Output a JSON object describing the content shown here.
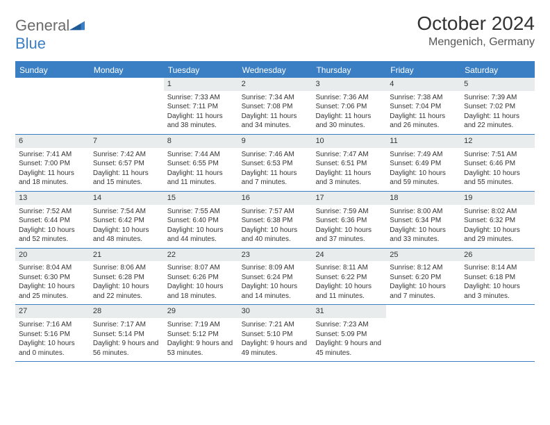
{
  "logo": {
    "part1": "General",
    "part2": "Blue"
  },
  "header": {
    "title": "October 2024",
    "location": "Mengenich, Germany"
  },
  "dayNames": [
    "Sunday",
    "Monday",
    "Tuesday",
    "Wednesday",
    "Thursday",
    "Friday",
    "Saturday"
  ],
  "colors": {
    "accent": "#3a7fc4",
    "dayNumBg": "#e8eced",
    "text": "#333333",
    "logoGray": "#6b6b6b",
    "background": "#ffffff"
  },
  "weeks": [
    [
      {
        "n": "",
        "sr": "",
        "ss": "",
        "dl": ""
      },
      {
        "n": "",
        "sr": "",
        "ss": "",
        "dl": ""
      },
      {
        "n": "1",
        "sr": "Sunrise: 7:33 AM",
        "ss": "Sunset: 7:11 PM",
        "dl": "Daylight: 11 hours and 38 minutes."
      },
      {
        "n": "2",
        "sr": "Sunrise: 7:34 AM",
        "ss": "Sunset: 7:08 PM",
        "dl": "Daylight: 11 hours and 34 minutes."
      },
      {
        "n": "3",
        "sr": "Sunrise: 7:36 AM",
        "ss": "Sunset: 7:06 PM",
        "dl": "Daylight: 11 hours and 30 minutes."
      },
      {
        "n": "4",
        "sr": "Sunrise: 7:38 AM",
        "ss": "Sunset: 7:04 PM",
        "dl": "Daylight: 11 hours and 26 minutes."
      },
      {
        "n": "5",
        "sr": "Sunrise: 7:39 AM",
        "ss": "Sunset: 7:02 PM",
        "dl": "Daylight: 11 hours and 22 minutes."
      }
    ],
    [
      {
        "n": "6",
        "sr": "Sunrise: 7:41 AM",
        "ss": "Sunset: 7:00 PM",
        "dl": "Daylight: 11 hours and 18 minutes."
      },
      {
        "n": "7",
        "sr": "Sunrise: 7:42 AM",
        "ss": "Sunset: 6:57 PM",
        "dl": "Daylight: 11 hours and 15 minutes."
      },
      {
        "n": "8",
        "sr": "Sunrise: 7:44 AM",
        "ss": "Sunset: 6:55 PM",
        "dl": "Daylight: 11 hours and 11 minutes."
      },
      {
        "n": "9",
        "sr": "Sunrise: 7:46 AM",
        "ss": "Sunset: 6:53 PM",
        "dl": "Daylight: 11 hours and 7 minutes."
      },
      {
        "n": "10",
        "sr": "Sunrise: 7:47 AM",
        "ss": "Sunset: 6:51 PM",
        "dl": "Daylight: 11 hours and 3 minutes."
      },
      {
        "n": "11",
        "sr": "Sunrise: 7:49 AM",
        "ss": "Sunset: 6:49 PM",
        "dl": "Daylight: 10 hours and 59 minutes."
      },
      {
        "n": "12",
        "sr": "Sunrise: 7:51 AM",
        "ss": "Sunset: 6:46 PM",
        "dl": "Daylight: 10 hours and 55 minutes."
      }
    ],
    [
      {
        "n": "13",
        "sr": "Sunrise: 7:52 AM",
        "ss": "Sunset: 6:44 PM",
        "dl": "Daylight: 10 hours and 52 minutes."
      },
      {
        "n": "14",
        "sr": "Sunrise: 7:54 AM",
        "ss": "Sunset: 6:42 PM",
        "dl": "Daylight: 10 hours and 48 minutes."
      },
      {
        "n": "15",
        "sr": "Sunrise: 7:55 AM",
        "ss": "Sunset: 6:40 PM",
        "dl": "Daylight: 10 hours and 44 minutes."
      },
      {
        "n": "16",
        "sr": "Sunrise: 7:57 AM",
        "ss": "Sunset: 6:38 PM",
        "dl": "Daylight: 10 hours and 40 minutes."
      },
      {
        "n": "17",
        "sr": "Sunrise: 7:59 AM",
        "ss": "Sunset: 6:36 PM",
        "dl": "Daylight: 10 hours and 37 minutes."
      },
      {
        "n": "18",
        "sr": "Sunrise: 8:00 AM",
        "ss": "Sunset: 6:34 PM",
        "dl": "Daylight: 10 hours and 33 minutes."
      },
      {
        "n": "19",
        "sr": "Sunrise: 8:02 AM",
        "ss": "Sunset: 6:32 PM",
        "dl": "Daylight: 10 hours and 29 minutes."
      }
    ],
    [
      {
        "n": "20",
        "sr": "Sunrise: 8:04 AM",
        "ss": "Sunset: 6:30 PM",
        "dl": "Daylight: 10 hours and 25 minutes."
      },
      {
        "n": "21",
        "sr": "Sunrise: 8:06 AM",
        "ss": "Sunset: 6:28 PM",
        "dl": "Daylight: 10 hours and 22 minutes."
      },
      {
        "n": "22",
        "sr": "Sunrise: 8:07 AM",
        "ss": "Sunset: 6:26 PM",
        "dl": "Daylight: 10 hours and 18 minutes."
      },
      {
        "n": "23",
        "sr": "Sunrise: 8:09 AM",
        "ss": "Sunset: 6:24 PM",
        "dl": "Daylight: 10 hours and 14 minutes."
      },
      {
        "n": "24",
        "sr": "Sunrise: 8:11 AM",
        "ss": "Sunset: 6:22 PM",
        "dl": "Daylight: 10 hours and 11 minutes."
      },
      {
        "n": "25",
        "sr": "Sunrise: 8:12 AM",
        "ss": "Sunset: 6:20 PM",
        "dl": "Daylight: 10 hours and 7 minutes."
      },
      {
        "n": "26",
        "sr": "Sunrise: 8:14 AM",
        "ss": "Sunset: 6:18 PM",
        "dl": "Daylight: 10 hours and 3 minutes."
      }
    ],
    [
      {
        "n": "27",
        "sr": "Sunrise: 7:16 AM",
        "ss": "Sunset: 5:16 PM",
        "dl": "Daylight: 10 hours and 0 minutes."
      },
      {
        "n": "28",
        "sr": "Sunrise: 7:17 AM",
        "ss": "Sunset: 5:14 PM",
        "dl": "Daylight: 9 hours and 56 minutes."
      },
      {
        "n": "29",
        "sr": "Sunrise: 7:19 AM",
        "ss": "Sunset: 5:12 PM",
        "dl": "Daylight: 9 hours and 53 minutes."
      },
      {
        "n": "30",
        "sr": "Sunrise: 7:21 AM",
        "ss": "Sunset: 5:10 PM",
        "dl": "Daylight: 9 hours and 49 minutes."
      },
      {
        "n": "31",
        "sr": "Sunrise: 7:23 AM",
        "ss": "Sunset: 5:09 PM",
        "dl": "Daylight: 9 hours and 45 minutes."
      },
      {
        "n": "",
        "sr": "",
        "ss": "",
        "dl": ""
      },
      {
        "n": "",
        "sr": "",
        "ss": "",
        "dl": ""
      }
    ]
  ]
}
